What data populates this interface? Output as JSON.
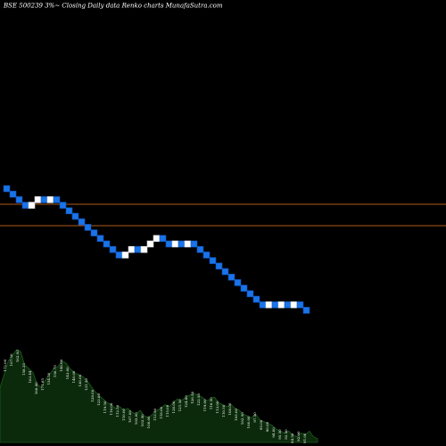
{
  "header": {
    "title_text": "BSE 500239 3%~  Closing Daily data  Renko  charts MunafaSutra.com"
  },
  "colors": {
    "background": "#000000",
    "up_brick": "#ffffff",
    "down_brick": "#1a73e8",
    "down_brick_stroke": "#0b4fb4",
    "ref_line": "#b05a18",
    "volume_fill": "#0b2a0b",
    "volume_stroke": "#1e5c1e",
    "volume_label": "#ffffff"
  },
  "chart_data": {
    "type": "renko",
    "title": "BSE 500239 3%~ Closing Daily data Renko charts MunafaSutra.com",
    "brick_direction_sequence": [
      "down",
      "down",
      "down",
      "down",
      "up",
      "up",
      "down",
      "up",
      "down",
      "down",
      "down",
      "down",
      "down",
      "down",
      "down",
      "down",
      "down",
      "down",
      "down",
      "up",
      "up",
      "down",
      "up",
      "up",
      "up",
      "down",
      "down",
      "up",
      "down",
      "up",
      "down",
      "down",
      "down",
      "down",
      "down",
      "down",
      "down",
      "down",
      "down",
      "down",
      "down",
      "down",
      "up",
      "down",
      "up",
      "down",
      "up",
      "down",
      "down"
    ],
    "reference_lines": 2,
    "volume_labels": [
      "172.00",
      "167.50",
      "162.93",
      "158.35",
      "163.44",
      "166.80",
      "171.65",
      "154.50",
      "150.75",
      "148.00",
      "143.00",
      "140.00",
      "136.00",
      "131.50",
      "128.00",
      "123.00",
      "119.50",
      "116.00",
      "112.50",
      "110.00",
      "107.00",
      "105.00",
      "103.50",
      "108.00",
      "113.50",
      "118.00",
      "115.00",
      "120.00",
      "121.50",
      "124.80",
      "126.50",
      "122.50",
      "119.00",
      "116.50",
      "113.00",
      "110.50",
      "108.00",
      "105.00",
      "102.50",
      "100.00",
      "97.50",
      "95.00",
      "96.00",
      "94.00",
      "95.50",
      "93.50",
      "94.50",
      "92.00",
      "91.00"
    ],
    "volume_series": [
      0.58,
      0.72,
      0.86,
      0.92,
      0.98,
      0.96,
      0.82,
      0.78,
      0.74,
      0.62,
      0.58,
      0.66,
      0.72,
      0.78,
      0.8,
      0.86,
      0.84,
      0.78,
      0.74,
      0.72,
      0.7,
      0.66,
      0.6,
      0.54,
      0.5,
      0.46,
      0.42,
      0.4,
      0.36,
      0.38,
      0.34,
      0.36,
      0.32,
      0.3,
      0.34,
      0.28,
      0.26,
      0.3,
      0.34,
      0.36,
      0.4,
      0.38,
      0.42,
      0.46,
      0.44,
      0.48,
      0.5,
      0.52,
      0.5,
      0.48,
      0.44,
      0.46,
      0.48,
      0.42,
      0.4,
      0.38,
      0.4,
      0.36,
      0.34,
      0.3,
      0.28,
      0.26,
      0.3,
      0.24,
      0.22,
      0.2,
      0.18,
      0.14,
      0.12,
      0.1,
      0.12,
      0.08,
      0.06,
      0.1,
      0.08,
      0.12,
      0.06,
      0.04
    ]
  }
}
